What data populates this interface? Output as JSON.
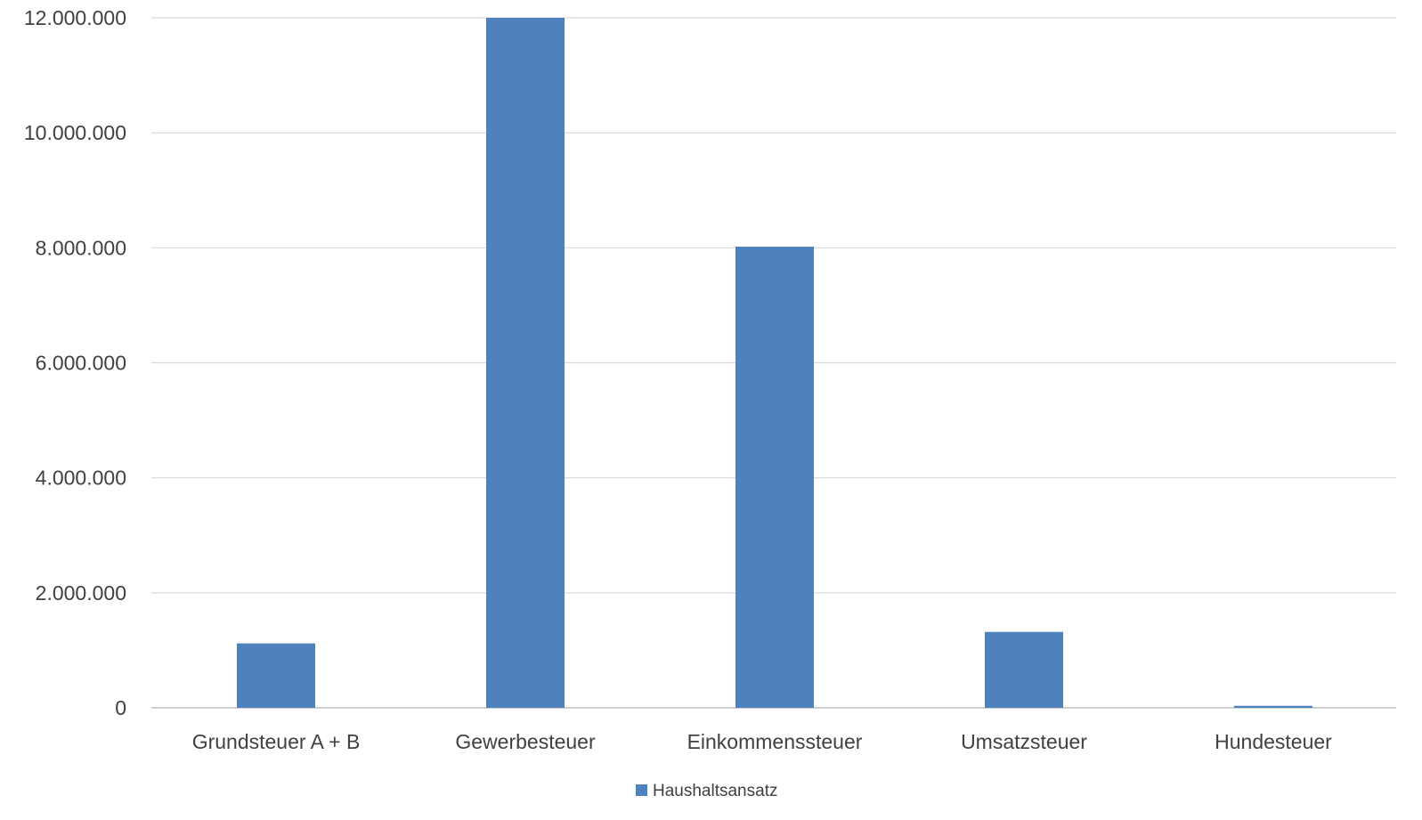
{
  "chart_data": {
    "type": "bar",
    "title": "",
    "xlabel": "",
    "ylabel": "",
    "categories": [
      "Grundsteuer A + B",
      "Gewerbesteuer",
      "Einkommenssteuer",
      "Umsatzsteuer",
      "Hundesteuer"
    ],
    "series": [
      {
        "name": "Haushaltsansatz",
        "values": [
          1120000,
          12000000,
          8020000,
          1320000,
          35000
        ]
      }
    ],
    "ylim": [
      0,
      12000000
    ],
    "yticks": [
      0,
      2000000,
      4000000,
      6000000,
      8000000,
      10000000,
      12000000
    ],
    "ytick_labels": [
      "0",
      "2.000.000",
      "4.000.000",
      "6.000.000",
      "8.000.000",
      "10.000.000",
      "12.000.000"
    ],
    "grid": true,
    "legend_position": "bottom",
    "colors": {
      "bar": "#4F81BD",
      "grid": "#D9D9D9",
      "axis": "#BFBFBF",
      "text": "#404040"
    }
  }
}
